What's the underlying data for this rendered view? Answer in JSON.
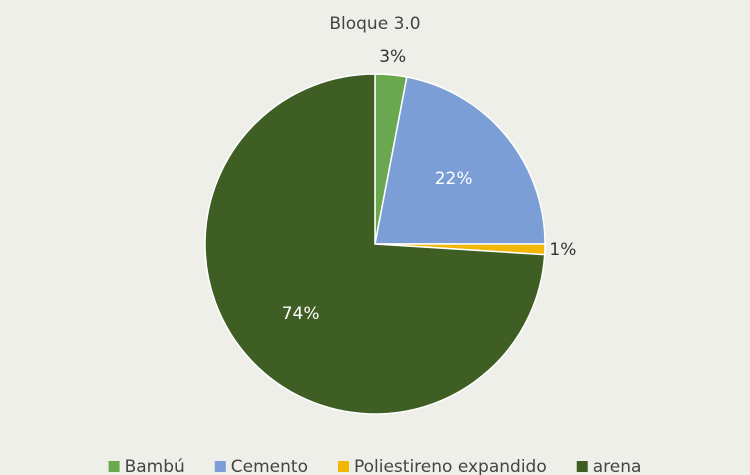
{
  "chart_data": {
    "type": "pie",
    "title": "Bloque 3.0",
    "categories": [
      "Bambú",
      "Cemento",
      "Poliestireno expandido",
      "arena"
    ],
    "values": [
      3,
      22,
      1,
      74
    ],
    "value_labels": [
      "3%",
      "22%",
      "1%",
      "74%"
    ],
    "colors": [
      "#6aa84f",
      "#7b9ed6",
      "#f2b705",
      "#3f5e24"
    ]
  }
}
